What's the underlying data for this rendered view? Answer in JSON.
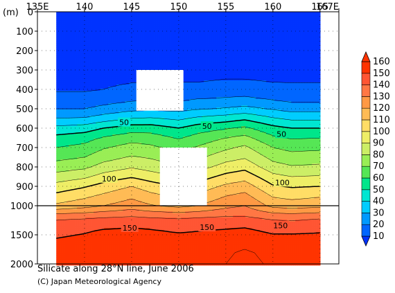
{
  "chart_data": {
    "type": "heatmap",
    "title": "Silicate along 28°N line, June 2006",
    "credit": "(C) Japan Meteorological Agency",
    "ylabel": "(m)",
    "x_ticks": [
      {
        "value": 135,
        "label": "135E"
      },
      {
        "value": 140,
        "label": "140"
      },
      {
        "value": 145,
        "label": "145"
      },
      {
        "value": 150,
        "label": "150"
      },
      {
        "value": 155,
        "label": "155"
      },
      {
        "value": 160,
        "label": "160"
      },
      {
        "value": 165,
        "label": "165"
      },
      {
        "value": 167,
        "label": "167E"
      }
    ],
    "xlim": [
      135,
      167
    ],
    "y_upper": {
      "range": [
        0,
        1000
      ],
      "ticks": [
        "0",
        "100",
        "200",
        "300",
        "400",
        "500",
        "600",
        "700",
        "800",
        "900",
        "1000"
      ]
    },
    "y_lower": {
      "range": [
        1000,
        2000
      ],
      "ticks": [
        "1500",
        "2000"
      ]
    },
    "colorbar": {
      "levels": [
        10,
        20,
        30,
        40,
        50,
        60,
        70,
        80,
        90,
        100,
        110,
        120,
        130,
        140,
        150,
        160
      ],
      "colors": [
        "#0033ff",
        "#0066ff",
        "#0099ff",
        "#00ccff",
        "#00e6d2",
        "#00e68a",
        "#55e655",
        "#99ee55",
        "#ccee66",
        "#eeee66",
        "#ffdd66",
        "#ffbb55",
        "#ff9944",
        "#ff7744",
        "#ff5533",
        "#ff3300"
      ]
    },
    "contour_labels": [
      {
        "text": "50",
        "lon": 144.2,
        "depth": 570
      },
      {
        "text": "50",
        "lon": 153.0,
        "depth": 590
      },
      {
        "text": "50",
        "lon": 160.9,
        "depth": 630
      },
      {
        "text": "100",
        "lon": 142.6,
        "depth": 860
      },
      {
        "text": "100",
        "lon": 161.0,
        "depth": 880
      },
      {
        "text": "150",
        "lon": 144.8,
        "depth": 1380
      },
      {
        "text": "150",
        "lon": 153.0,
        "depth": 1370
      },
      {
        "text": "150",
        "lon": 160.8,
        "depth": 1340
      }
    ],
    "missing_regions": [
      {
        "lon": [
          148.0,
          153.0
        ],
        "depth": [
          700,
          1000
        ]
      },
      {
        "lon": [
          145.5,
          150.5
        ],
        "depth": [
          300,
          510
        ]
      }
    ],
    "sections": {
      "upper": {
        "lons": [
          137,
          140,
          142,
          145,
          147,
          150,
          152,
          155,
          157,
          160,
          162,
          165
        ],
        "depths": [
          0,
          50,
          100,
          150,
          200,
          250,
          300,
          350,
          400,
          450,
          500,
          550,
          600,
          650,
          700,
          750,
          800,
          850,
          900,
          950,
          1000
        ],
        "values": [
          [
            5,
            5,
            5,
            5,
            5,
            5,
            5,
            5,
            5,
            5,
            5,
            5
          ],
          [
            5,
            5,
            5,
            5,
            5,
            5,
            5,
            5,
            5,
            5,
            5,
            5
          ],
          [
            5,
            5,
            5,
            5,
            5,
            5,
            5,
            5,
            5,
            5,
            5,
            5
          ],
          [
            5,
            5,
            5,
            5,
            5,
            5,
            5,
            5,
            5,
            5,
            5,
            5
          ],
          [
            5,
            5,
            5,
            5,
            5,
            5,
            5,
            5,
            5,
            5,
            5,
            5
          ],
          [
            6,
            6,
            6,
            6,
            6,
            6,
            6,
            6,
            6,
            6,
            6,
            6
          ],
          [
            7,
            7,
            7,
            7,
            7,
            7,
            7,
            8,
            8,
            7,
            7,
            7
          ],
          [
            8,
            8,
            8,
            9,
            9,
            9,
            9,
            10,
            10,
            9,
            9,
            9
          ],
          [
            9,
            9,
            10,
            12,
            13,
            13,
            13,
            15,
            15,
            13,
            12,
            12
          ],
          [
            13,
            13,
            15,
            18,
            19,
            18,
            20,
            21,
            22,
            19,
            17,
            17
          ],
          [
            20,
            20,
            23,
            27,
            28,
            27,
            29,
            31,
            33,
            29,
            26,
            26
          ],
          [
            30,
            31,
            35,
            40,
            41,
            38,
            42,
            45,
            48,
            41,
            38,
            38
          ],
          [
            43,
            45,
            50,
            55,
            55,
            50,
            55,
            59,
            62,
            53,
            50,
            50
          ],
          [
            53,
            56,
            61,
            66,
            65,
            59,
            64,
            70,
            73,
            62,
            59,
            60
          ],
          [
            60,
            63,
            69,
            74,
            72,
            67,
            71,
            78,
            82,
            70,
            67,
            68
          ],
          [
            67,
            70,
            76,
            81,
            79,
            74,
            78,
            86,
            89,
            77,
            74,
            75
          ],
          [
            75,
            78,
            84,
            89,
            86,
            81,
            86,
            94,
            97,
            84,
            81,
            82
          ],
          [
            84,
            88,
            94,
            99,
            95,
            90,
            95,
            103,
            106,
            93,
            90,
            91
          ],
          [
            94,
            99,
            104,
            110,
            105,
            99,
            104,
            112,
            115,
            101,
            99,
            100
          ],
          [
            103,
            108,
            112,
            118,
            113,
            108,
            112,
            120,
            123,
            109,
            107,
            109
          ],
          [
            112,
            116,
            120,
            125,
            121,
            117,
            120,
            127,
            130,
            117,
            115,
            117
          ]
        ]
      },
      "lower": {
        "lons": [
          137,
          140,
          142,
          145,
          147,
          150,
          152,
          155,
          157,
          160,
          162,
          165
        ],
        "depths": [
          1000,
          1200,
          1400,
          1600,
          1800,
          2000
        ],
        "values": [
          [
            112,
            116,
            120,
            125,
            121,
            117,
            120,
            127,
            130,
            117,
            115,
            117
          ],
          [
            138,
            139,
            140,
            141,
            140,
            139,
            140,
            141,
            141,
            138,
            137,
            139
          ],
          [
            146,
            148,
            150,
            151,
            150,
            148,
            149,
            150,
            151,
            147,
            147,
            148
          ],
          [
            151,
            153,
            156,
            156,
            155,
            154,
            154,
            156,
            157,
            154,
            154,
            154
          ],
          [
            153,
            155,
            158,
            158,
            157,
            156,
            156,
            159,
            161,
            158,
            157,
            157
          ],
          [
            154,
            156,
            158,
            159,
            158,
            157,
            157,
            160,
            162,
            159,
            158,
            158
          ]
        ]
      }
    }
  }
}
